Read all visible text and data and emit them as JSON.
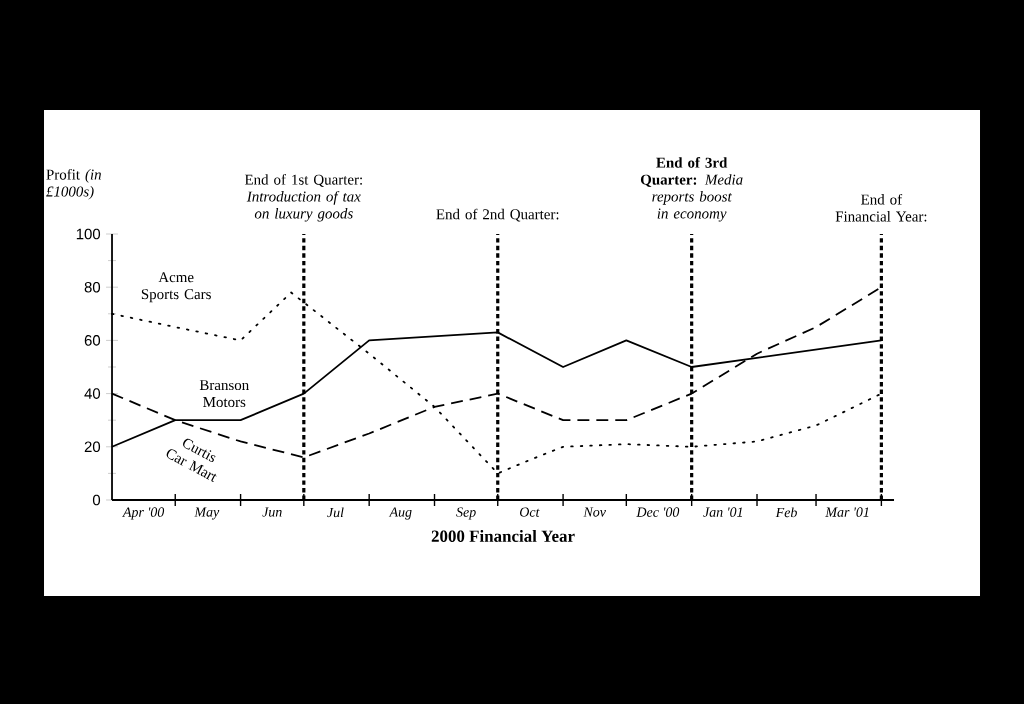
{
  "chart_data": {
    "type": "line",
    "xlabel": "2000 Financial Year",
    "ylabel": "Profit *(in £1000s)*",
    "xlim": [
      "2000-04-01",
      "2001-04-07"
    ],
    "ylim": [
      0,
      100
    ],
    "yticks": [
      0,
      20,
      40,
      60,
      80,
      100
    ],
    "xticks": [
      {
        "value": "2000-04-16",
        "label": "Apr '00"
      },
      {
        "value": "2000-05-16",
        "label": "May"
      },
      {
        "value": "2000-06-16",
        "label": "Jun"
      },
      {
        "value": "2000-07-16",
        "label": "Jul"
      },
      {
        "value": "2000-08-16",
        "label": "Aug"
      },
      {
        "value": "2000-09-16",
        "label": "Sep"
      },
      {
        "value": "2000-10-16",
        "label": "Oct"
      },
      {
        "value": "2000-11-16",
        "label": "Nov"
      },
      {
        "value": "2000-12-16",
        "label": "Dec '00"
      },
      {
        "value": "2001-01-16",
        "label": "Jan '01"
      },
      {
        "value": "2001-02-15",
        "label": "Feb"
      },
      {
        "value": "2001-03-16",
        "label": "Mar '01"
      },
      {
        "value": "2000-05-01",
        "label": null
      },
      {
        "value": "2000-06-01",
        "label": null
      },
      {
        "value": "2000-07-01",
        "label": null
      },
      {
        "value": "2000-08-01",
        "label": null
      },
      {
        "value": "2000-09-01",
        "label": null
      },
      {
        "value": "2000-10-01",
        "label": null
      },
      {
        "value": "2000-11-01",
        "label": null
      },
      {
        "value": "2000-12-01",
        "label": null
      },
      {
        "value": "2001-01-01",
        "label": null
      },
      {
        "value": "2001-02-01",
        "label": null
      },
      {
        "value": "2001-03-01",
        "label": null
      },
      {
        "value": "2001-04-01",
        "label": null
      }
    ],
    "grid": false,
    "marker": "none",
    "series": [
      {
        "name": "Acme Sports Cars",
        "color": "#000000",
        "line_style": "dotted",
        "x": [
          "2000-04-01",
          "2000-05-01",
          "2000-06-01",
          "2000-06-25",
          "2000-08-01",
          "2000-09-01",
          "2000-10-01",
          "2000-10-16",
          "2000-11-01",
          "2000-12-01",
          "2001-01-01",
          "2001-02-01",
          "2001-03-01",
          "2001-04-01"
        ],
        "values": [
          70,
          65,
          60,
          78,
          55,
          35,
          10,
          15,
          20,
          21,
          20,
          22,
          28,
          40
        ]
      },
      {
        "name": "Branson Motors",
        "color": "#000000",
        "line_style": "solid",
        "x": [
          "2000-04-01",
          "2000-05-01",
          "2000-06-01",
          "2000-07-01",
          "2000-08-01",
          "2000-10-01",
          "2000-11-01",
          "2000-12-01",
          "2001-01-01",
          "2001-04-01"
        ],
        "values": [
          20,
          30,
          30,
          40,
          60,
          63,
          50,
          60,
          50,
          60
        ]
      },
      {
        "name": "Curtis Car Mart",
        "color": "#000000",
        "line_style": "dashed",
        "x": [
          "2000-04-01",
          "2000-05-01",
          "2000-06-01",
          "2000-07-01",
          "2000-08-01",
          "2000-09-01",
          "2000-10-01",
          "2000-11-01",
          "2000-12-01",
          "2001-01-01",
          "2001-02-01",
          "2001-03-01",
          "2001-04-01"
        ],
        "values": [
          40,
          30,
          22,
          16,
          25,
          35,
          40,
          30,
          30,
          40,
          55,
          65,
          80
        ]
      }
    ],
    "ref_lines": [
      {
        "axis": "x",
        "value": "2000-07-01",
        "label": "End of 1st Quarter: *Introduction of tax on luxury goods*",
        "color": "#000000",
        "line_style": "dashed"
      },
      {
        "axis": "x",
        "value": "2000-10-01",
        "label": "End of 2nd Quarter:",
        "color": "#000000",
        "line_style": "dashed"
      },
      {
        "axis": "x",
        "value": "2001-01-01",
        "label": "**End of 3rd Quarter:** *Media reports boost in economy*",
        "color": "#000000",
        "line_style": "dashed"
      },
      {
        "axis": "x",
        "value": "2001-04-01",
        "label": "End of Financial Year:",
        "color": "#000000",
        "line_style": "dashed"
      }
    ]
  }
}
